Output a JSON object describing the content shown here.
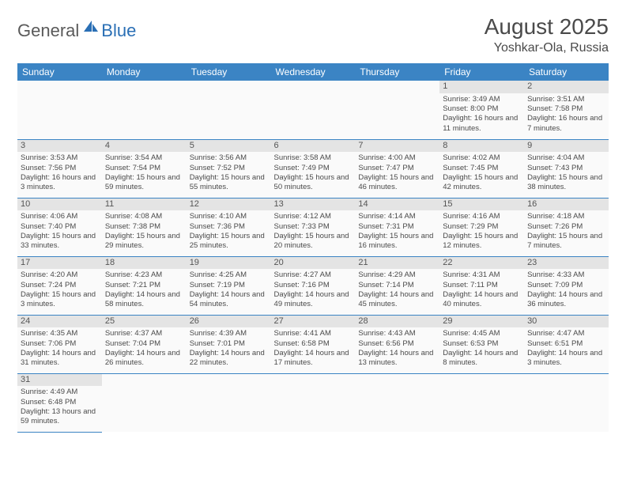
{
  "logo": {
    "general": "General",
    "blue": "Blue"
  },
  "header": {
    "month_title": "August 2025",
    "location": "Yoshkar-Ola, Russia"
  },
  "style": {
    "header_bg": "#3b84c4",
    "header_fg": "#ffffff",
    "border_color": "#3b84c4",
    "daynum_bg": "#e4e4e4",
    "text_color": "#4a4a4a",
    "title_fontsize_pt": 28,
    "location_fontsize_pt": 16,
    "th_fontsize_pt": 12,
    "cell_fontsize_pt": 10
  },
  "weekdays": [
    "Sunday",
    "Monday",
    "Tuesday",
    "Wednesday",
    "Thursday",
    "Friday",
    "Saturday"
  ],
  "grid": [
    [
      null,
      null,
      null,
      null,
      null,
      {
        "n": "1",
        "sr": "Sunrise: 3:49 AM",
        "ss": "Sunset: 8:00 PM",
        "dl": "Daylight: 16 hours and 11 minutes."
      },
      {
        "n": "2",
        "sr": "Sunrise: 3:51 AM",
        "ss": "Sunset: 7:58 PM",
        "dl": "Daylight: 16 hours and 7 minutes."
      }
    ],
    [
      {
        "n": "3",
        "sr": "Sunrise: 3:53 AM",
        "ss": "Sunset: 7:56 PM",
        "dl": "Daylight: 16 hours and 3 minutes."
      },
      {
        "n": "4",
        "sr": "Sunrise: 3:54 AM",
        "ss": "Sunset: 7:54 PM",
        "dl": "Daylight: 15 hours and 59 minutes."
      },
      {
        "n": "5",
        "sr": "Sunrise: 3:56 AM",
        "ss": "Sunset: 7:52 PM",
        "dl": "Daylight: 15 hours and 55 minutes."
      },
      {
        "n": "6",
        "sr": "Sunrise: 3:58 AM",
        "ss": "Sunset: 7:49 PM",
        "dl": "Daylight: 15 hours and 50 minutes."
      },
      {
        "n": "7",
        "sr": "Sunrise: 4:00 AM",
        "ss": "Sunset: 7:47 PM",
        "dl": "Daylight: 15 hours and 46 minutes."
      },
      {
        "n": "8",
        "sr": "Sunrise: 4:02 AM",
        "ss": "Sunset: 7:45 PM",
        "dl": "Daylight: 15 hours and 42 minutes."
      },
      {
        "n": "9",
        "sr": "Sunrise: 4:04 AM",
        "ss": "Sunset: 7:43 PM",
        "dl": "Daylight: 15 hours and 38 minutes."
      }
    ],
    [
      {
        "n": "10",
        "sr": "Sunrise: 4:06 AM",
        "ss": "Sunset: 7:40 PM",
        "dl": "Daylight: 15 hours and 33 minutes."
      },
      {
        "n": "11",
        "sr": "Sunrise: 4:08 AM",
        "ss": "Sunset: 7:38 PM",
        "dl": "Daylight: 15 hours and 29 minutes."
      },
      {
        "n": "12",
        "sr": "Sunrise: 4:10 AM",
        "ss": "Sunset: 7:36 PM",
        "dl": "Daylight: 15 hours and 25 minutes."
      },
      {
        "n": "13",
        "sr": "Sunrise: 4:12 AM",
        "ss": "Sunset: 7:33 PM",
        "dl": "Daylight: 15 hours and 20 minutes."
      },
      {
        "n": "14",
        "sr": "Sunrise: 4:14 AM",
        "ss": "Sunset: 7:31 PM",
        "dl": "Daylight: 15 hours and 16 minutes."
      },
      {
        "n": "15",
        "sr": "Sunrise: 4:16 AM",
        "ss": "Sunset: 7:29 PM",
        "dl": "Daylight: 15 hours and 12 minutes."
      },
      {
        "n": "16",
        "sr": "Sunrise: 4:18 AM",
        "ss": "Sunset: 7:26 PM",
        "dl": "Daylight: 15 hours and 7 minutes."
      }
    ],
    [
      {
        "n": "17",
        "sr": "Sunrise: 4:20 AM",
        "ss": "Sunset: 7:24 PM",
        "dl": "Daylight: 15 hours and 3 minutes."
      },
      {
        "n": "18",
        "sr": "Sunrise: 4:23 AM",
        "ss": "Sunset: 7:21 PM",
        "dl": "Daylight: 14 hours and 58 minutes."
      },
      {
        "n": "19",
        "sr": "Sunrise: 4:25 AM",
        "ss": "Sunset: 7:19 PM",
        "dl": "Daylight: 14 hours and 54 minutes."
      },
      {
        "n": "20",
        "sr": "Sunrise: 4:27 AM",
        "ss": "Sunset: 7:16 PM",
        "dl": "Daylight: 14 hours and 49 minutes."
      },
      {
        "n": "21",
        "sr": "Sunrise: 4:29 AM",
        "ss": "Sunset: 7:14 PM",
        "dl": "Daylight: 14 hours and 45 minutes."
      },
      {
        "n": "22",
        "sr": "Sunrise: 4:31 AM",
        "ss": "Sunset: 7:11 PM",
        "dl": "Daylight: 14 hours and 40 minutes."
      },
      {
        "n": "23",
        "sr": "Sunrise: 4:33 AM",
        "ss": "Sunset: 7:09 PM",
        "dl": "Daylight: 14 hours and 36 minutes."
      }
    ],
    [
      {
        "n": "24",
        "sr": "Sunrise: 4:35 AM",
        "ss": "Sunset: 7:06 PM",
        "dl": "Daylight: 14 hours and 31 minutes."
      },
      {
        "n": "25",
        "sr": "Sunrise: 4:37 AM",
        "ss": "Sunset: 7:04 PM",
        "dl": "Daylight: 14 hours and 26 minutes."
      },
      {
        "n": "26",
        "sr": "Sunrise: 4:39 AM",
        "ss": "Sunset: 7:01 PM",
        "dl": "Daylight: 14 hours and 22 minutes."
      },
      {
        "n": "27",
        "sr": "Sunrise: 4:41 AM",
        "ss": "Sunset: 6:58 PM",
        "dl": "Daylight: 14 hours and 17 minutes."
      },
      {
        "n": "28",
        "sr": "Sunrise: 4:43 AM",
        "ss": "Sunset: 6:56 PM",
        "dl": "Daylight: 14 hours and 13 minutes."
      },
      {
        "n": "29",
        "sr": "Sunrise: 4:45 AM",
        "ss": "Sunset: 6:53 PM",
        "dl": "Daylight: 14 hours and 8 minutes."
      },
      {
        "n": "30",
        "sr": "Sunrise: 4:47 AM",
        "ss": "Sunset: 6:51 PM",
        "dl": "Daylight: 14 hours and 3 minutes."
      }
    ],
    [
      {
        "n": "31",
        "sr": "Sunrise: 4:49 AM",
        "ss": "Sunset: 6:48 PM",
        "dl": "Daylight: 13 hours and 59 minutes."
      },
      null,
      null,
      null,
      null,
      null,
      null
    ]
  ]
}
